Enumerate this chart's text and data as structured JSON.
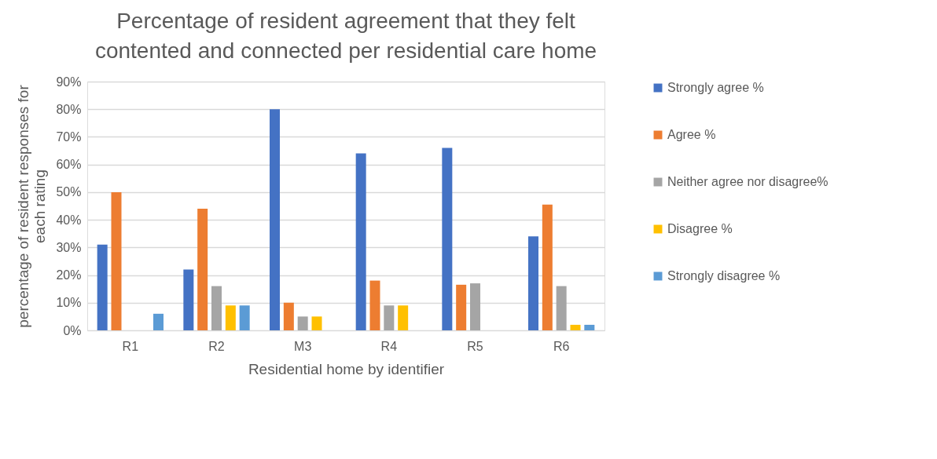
{
  "chart_data": {
    "type": "bar",
    "title": "Percentage of resident agreement that they felt contented and connected per residential care home",
    "xlabel": "Residential home by identifier",
    "ylabel": "percentage of resident responses for each rating",
    "categories": [
      "R1",
      "R2",
      "M3",
      "R4",
      "R5",
      "R6"
    ],
    "series": [
      {
        "name": "Strongly agree %",
        "color": "#4472c4",
        "values": [
          31,
          22,
          80,
          64,
          66,
          34
        ]
      },
      {
        "name": "Agree %",
        "color": "#ed7d31",
        "values": [
          50,
          44,
          10,
          18,
          16.5,
          45.5
        ]
      },
      {
        "name": "Neither agree nor disagree%",
        "color": "#a5a5a5",
        "values": [
          0,
          16,
          5,
          9,
          17,
          16
        ]
      },
      {
        "name": "Disagree %",
        "color": "#ffc000",
        "values": [
          0,
          9,
          5,
          9,
          0,
          2
        ]
      },
      {
        "name": "Strongly disagree %",
        "color": "#5b9bd5",
        "values": [
          6,
          9,
          0,
          0,
          0,
          2
        ]
      }
    ],
    "ylim": [
      0,
      90
    ],
    "yticks": [
      {
        "value": 0,
        "label": "0%"
      },
      {
        "value": 10,
        "label": "10%"
      },
      {
        "value": 20,
        "label": "20%"
      },
      {
        "value": 30,
        "label": "30%"
      },
      {
        "value": 40,
        "label": "40%"
      },
      {
        "value": 50,
        "label": "50%"
      },
      {
        "value": 60,
        "label": "60%"
      },
      {
        "value": 70,
        "label": "70%"
      },
      {
        "value": 80,
        "label": "80%"
      },
      {
        "value": 90,
        "label": "90%"
      }
    ],
    "grid": "y",
    "legend": "right"
  }
}
